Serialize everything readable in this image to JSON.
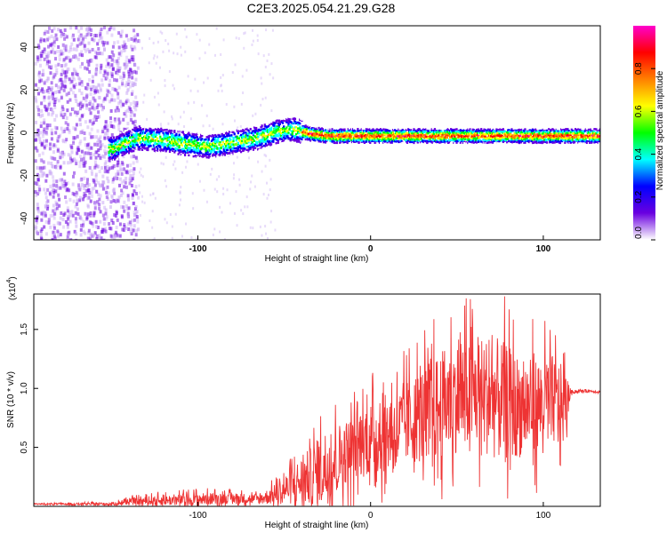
{
  "title": "C2E3.2025.054.21.29.G28",
  "chart_data": [
    {
      "type": "heatmap",
      "xlabel": "Height of straight line (km)",
      "ylabel": "Frequency (Hz)",
      "xlim": [
        -195,
        133
      ],
      "ylim": [
        -50,
        50
      ],
      "xticks": [
        -100,
        0,
        100
      ],
      "yticks": [
        -40,
        -20,
        0,
        20,
        40
      ],
      "colorbar": {
        "label": "Normalized spectral amplitude",
        "ticks": [
          "0.0",
          "0.2",
          "0.4",
          "0.6",
          "0.8"
        ],
        "range": [
          0,
          1
        ],
        "colors": [
          "#ffffff",
          "#6a00e0",
          "#0000ff",
          "#00ffff",
          "#00ff00",
          "#ffff00",
          "#ff8000",
          "#ff0000",
          "#ff00cc"
        ]
      },
      "ridge": {
        "x": [
          -150,
          -135,
          -120,
          -105,
          -95,
          -80,
          -65,
          -55,
          -45,
          -35,
          -25,
          -10,
          0,
          20,
          40,
          60,
          80,
          100,
          120,
          133
        ],
        "y": [
          -7,
          -2,
          -3,
          -5,
          -6,
          -4,
          -2,
          1,
          2,
          0,
          -1,
          -1,
          -1,
          -1,
          -1,
          -1,
          -1,
          -1,
          -1,
          -1
        ]
      }
    },
    {
      "type": "line",
      "xlabel": "Height of straight line (km)",
      "ylabel": "SNR (10 * v/v)",
      "scale_note": "(x10",
      "scale_exp": "4",
      "ylim": [
        0,
        1.8
      ],
      "xlim": [
        -195,
        133
      ],
      "xticks": [
        -100,
        0,
        100
      ],
      "yticks": [
        "0.5",
        "1.0",
        "1.5"
      ],
      "series_color": "#ee3333",
      "envelope": {
        "x": [
          -195,
          -150,
          -140,
          -120,
          -100,
          -80,
          -65,
          -55,
          -45,
          -35,
          -25,
          -15,
          -5,
          5,
          15,
          25,
          35,
          45,
          55,
          65,
          75,
          85,
          95,
          105,
          112,
          116,
          125,
          133
        ],
        "base": [
          0.02,
          0.02,
          0.04,
          0.05,
          0.06,
          0.07,
          0.06,
          0.1,
          0.18,
          0.25,
          0.35,
          0.45,
          0.55,
          0.6,
          0.65,
          0.75,
          0.8,
          0.9,
          0.95,
          0.95,
          0.9,
          0.85,
          0.85,
          0.9,
          0.85,
          0.97,
          0.98,
          0.97
        ],
        "amp": [
          0.01,
          0.02,
          0.05,
          0.08,
          0.1,
          0.08,
          0.08,
          0.15,
          0.3,
          0.45,
          0.6,
          0.5,
          0.55,
          0.6,
          0.6,
          0.7,
          0.8,
          0.85,
          0.85,
          0.9,
          0.95,
          0.8,
          0.75,
          0.7,
          0.6,
          0.03,
          0.02,
          0.02
        ]
      }
    }
  ]
}
